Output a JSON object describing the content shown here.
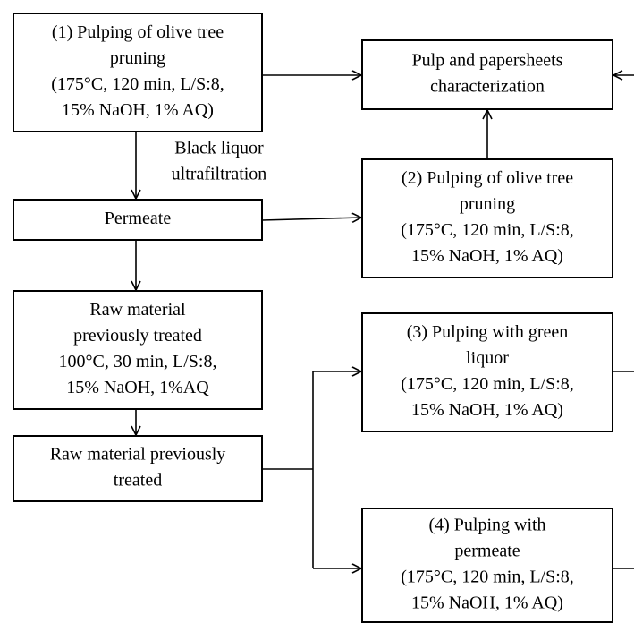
{
  "nodes": [
    {
      "lines": [
        "(1) Pulping of  olive tree",
        "pruning",
        "(175°C, 120 min, L/S:8,",
        "15% NaOH, 1% AQ)"
      ]
    },
    {
      "lines": [
        "Pulp and papersheets",
        "characterization"
      ]
    },
    {
      "lines": [
        "Permeate"
      ]
    },
    {
      "lines": [
        "(2) Pulping of  olive tree",
        "pruning",
        "(175°C, 120 min, L/S:8,",
        "15% NaOH, 1% AQ)"
      ]
    },
    {
      "lines": [
        "Raw material",
        "previously treated",
        "100°C, 30 min, L/S:8,",
        "15% NaOH, 1%AQ"
      ]
    },
    {
      "lines": [
        "(3) Pulping with green",
        "liquor",
        "(175°C, 120 min, L/S:8,",
        "15% NaOH, 1% AQ)"
      ]
    },
    {
      "lines": [
        "Raw material  previously",
        "treated"
      ]
    },
    {
      "lines": [
        "(4) Pulping with",
        "permeate",
        "(175°C, 120 min, L/S:8,",
        "15% NaOH, 1% AQ)"
      ]
    }
  ],
  "edge_label": {
    "lines": [
      "Black liquor",
      "ultrafiltration"
    ]
  }
}
